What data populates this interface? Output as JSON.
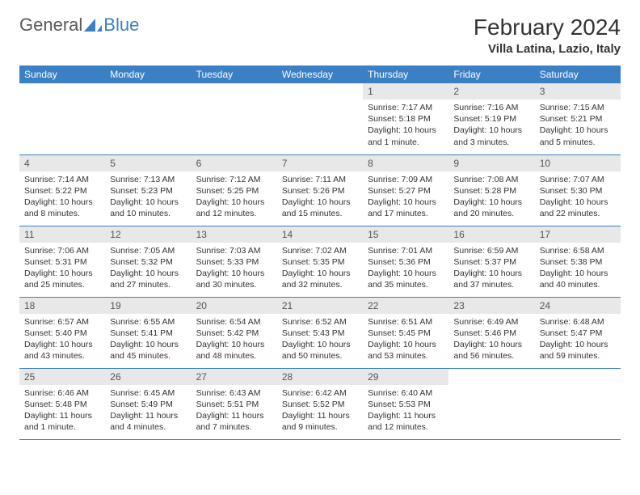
{
  "brand": {
    "part1": "General",
    "part2": "Blue"
  },
  "title": "February 2024",
  "location": "Villa Latina, Lazio, Italy",
  "colors": {
    "header_bg": "#3b7fc4",
    "header_text": "#ffffff",
    "daynum_bg": "#e8e8e8",
    "border": "#3b7fc4",
    "brand_gray": "#5a5a5a",
    "brand_blue": "#3b7fc4"
  },
  "weekdays": [
    "Sunday",
    "Monday",
    "Tuesday",
    "Wednesday",
    "Thursday",
    "Friday",
    "Saturday"
  ],
  "weeks": [
    [
      null,
      null,
      null,
      null,
      {
        "n": "1",
        "sunrise": "Sunrise: 7:17 AM",
        "sunset": "Sunset: 5:18 PM",
        "daylight": "Daylight: 10 hours and 1 minute."
      },
      {
        "n": "2",
        "sunrise": "Sunrise: 7:16 AM",
        "sunset": "Sunset: 5:19 PM",
        "daylight": "Daylight: 10 hours and 3 minutes."
      },
      {
        "n": "3",
        "sunrise": "Sunrise: 7:15 AM",
        "sunset": "Sunset: 5:21 PM",
        "daylight": "Daylight: 10 hours and 5 minutes."
      }
    ],
    [
      {
        "n": "4",
        "sunrise": "Sunrise: 7:14 AM",
        "sunset": "Sunset: 5:22 PM",
        "daylight": "Daylight: 10 hours and 8 minutes."
      },
      {
        "n": "5",
        "sunrise": "Sunrise: 7:13 AM",
        "sunset": "Sunset: 5:23 PM",
        "daylight": "Daylight: 10 hours and 10 minutes."
      },
      {
        "n": "6",
        "sunrise": "Sunrise: 7:12 AM",
        "sunset": "Sunset: 5:25 PM",
        "daylight": "Daylight: 10 hours and 12 minutes."
      },
      {
        "n": "7",
        "sunrise": "Sunrise: 7:11 AM",
        "sunset": "Sunset: 5:26 PM",
        "daylight": "Daylight: 10 hours and 15 minutes."
      },
      {
        "n": "8",
        "sunrise": "Sunrise: 7:09 AM",
        "sunset": "Sunset: 5:27 PM",
        "daylight": "Daylight: 10 hours and 17 minutes."
      },
      {
        "n": "9",
        "sunrise": "Sunrise: 7:08 AM",
        "sunset": "Sunset: 5:28 PM",
        "daylight": "Daylight: 10 hours and 20 minutes."
      },
      {
        "n": "10",
        "sunrise": "Sunrise: 7:07 AM",
        "sunset": "Sunset: 5:30 PM",
        "daylight": "Daylight: 10 hours and 22 minutes."
      }
    ],
    [
      {
        "n": "11",
        "sunrise": "Sunrise: 7:06 AM",
        "sunset": "Sunset: 5:31 PM",
        "daylight": "Daylight: 10 hours and 25 minutes."
      },
      {
        "n": "12",
        "sunrise": "Sunrise: 7:05 AM",
        "sunset": "Sunset: 5:32 PM",
        "daylight": "Daylight: 10 hours and 27 minutes."
      },
      {
        "n": "13",
        "sunrise": "Sunrise: 7:03 AM",
        "sunset": "Sunset: 5:33 PM",
        "daylight": "Daylight: 10 hours and 30 minutes."
      },
      {
        "n": "14",
        "sunrise": "Sunrise: 7:02 AM",
        "sunset": "Sunset: 5:35 PM",
        "daylight": "Daylight: 10 hours and 32 minutes."
      },
      {
        "n": "15",
        "sunrise": "Sunrise: 7:01 AM",
        "sunset": "Sunset: 5:36 PM",
        "daylight": "Daylight: 10 hours and 35 minutes."
      },
      {
        "n": "16",
        "sunrise": "Sunrise: 6:59 AM",
        "sunset": "Sunset: 5:37 PM",
        "daylight": "Daylight: 10 hours and 37 minutes."
      },
      {
        "n": "17",
        "sunrise": "Sunrise: 6:58 AM",
        "sunset": "Sunset: 5:38 PM",
        "daylight": "Daylight: 10 hours and 40 minutes."
      }
    ],
    [
      {
        "n": "18",
        "sunrise": "Sunrise: 6:57 AM",
        "sunset": "Sunset: 5:40 PM",
        "daylight": "Daylight: 10 hours and 43 minutes."
      },
      {
        "n": "19",
        "sunrise": "Sunrise: 6:55 AM",
        "sunset": "Sunset: 5:41 PM",
        "daylight": "Daylight: 10 hours and 45 minutes."
      },
      {
        "n": "20",
        "sunrise": "Sunrise: 6:54 AM",
        "sunset": "Sunset: 5:42 PM",
        "daylight": "Daylight: 10 hours and 48 minutes."
      },
      {
        "n": "21",
        "sunrise": "Sunrise: 6:52 AM",
        "sunset": "Sunset: 5:43 PM",
        "daylight": "Daylight: 10 hours and 50 minutes."
      },
      {
        "n": "22",
        "sunrise": "Sunrise: 6:51 AM",
        "sunset": "Sunset: 5:45 PM",
        "daylight": "Daylight: 10 hours and 53 minutes."
      },
      {
        "n": "23",
        "sunrise": "Sunrise: 6:49 AM",
        "sunset": "Sunset: 5:46 PM",
        "daylight": "Daylight: 10 hours and 56 minutes."
      },
      {
        "n": "24",
        "sunrise": "Sunrise: 6:48 AM",
        "sunset": "Sunset: 5:47 PM",
        "daylight": "Daylight: 10 hours and 59 minutes."
      }
    ],
    [
      {
        "n": "25",
        "sunrise": "Sunrise: 6:46 AM",
        "sunset": "Sunset: 5:48 PM",
        "daylight": "Daylight: 11 hours and 1 minute."
      },
      {
        "n": "26",
        "sunrise": "Sunrise: 6:45 AM",
        "sunset": "Sunset: 5:49 PM",
        "daylight": "Daylight: 11 hours and 4 minutes."
      },
      {
        "n": "27",
        "sunrise": "Sunrise: 6:43 AM",
        "sunset": "Sunset: 5:51 PM",
        "daylight": "Daylight: 11 hours and 7 minutes."
      },
      {
        "n": "28",
        "sunrise": "Sunrise: 6:42 AM",
        "sunset": "Sunset: 5:52 PM",
        "daylight": "Daylight: 11 hours and 9 minutes."
      },
      {
        "n": "29",
        "sunrise": "Sunrise: 6:40 AM",
        "sunset": "Sunset: 5:53 PM",
        "daylight": "Daylight: 11 hours and 12 minutes."
      },
      null,
      null
    ]
  ]
}
